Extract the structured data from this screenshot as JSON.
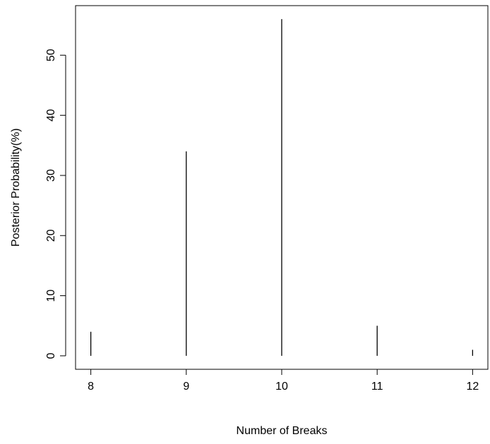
{
  "chart_data": {
    "type": "bar",
    "style": "histogram-spikes",
    "title": "",
    "xlabel": "Number of Breaks",
    "ylabel": "Posterior Probability(%)",
    "categories": [
      "8",
      "9",
      "10",
      "11",
      "12"
    ],
    "x": [
      8,
      9,
      10,
      11,
      12
    ],
    "values": [
      4,
      34,
      56,
      5,
      1
    ],
    "xlim": [
      7.84,
      12.16
    ],
    "ylim": [
      -2.24,
      58.24
    ],
    "x_ticks": [
      8,
      9,
      10,
      11,
      12
    ],
    "x_tick_labels": [
      "8",
      "9",
      "10",
      "11",
      "12"
    ],
    "y_ticks": [
      0,
      10,
      20,
      30,
      40,
      50
    ],
    "y_tick_labels": [
      "0",
      "10",
      "20",
      "30",
      "40",
      "50"
    ],
    "grid": false,
    "legend": "none",
    "colors": {
      "line": "#000000",
      "background": "#ffffff"
    }
  }
}
